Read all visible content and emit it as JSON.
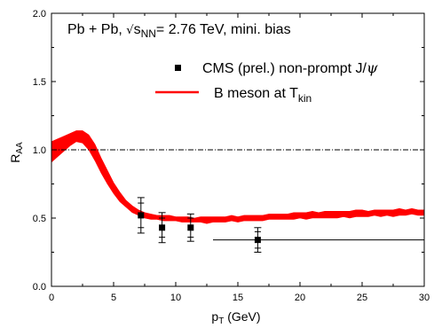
{
  "chart_data": {
    "type": "scatter",
    "title": "",
    "annotation": {
      "pre": "Pb + Pb, ",
      "sqrt": "√",
      "s": "s",
      "sub": "NN",
      "post": "= 2.76 TeV, mini. bias"
    },
    "xlabel": {
      "main": "p",
      "sub": "T",
      "rest": " (GeV)"
    },
    "ylabel": {
      "main": "R",
      "sub": "AA"
    },
    "xlim": [
      0,
      30
    ],
    "ylim": [
      0.0,
      2.0
    ],
    "x_ticks": [
      "0",
      "5",
      "10",
      "15",
      "20",
      "25",
      "30"
    ],
    "y_ticks": [
      "0.0",
      "0.5",
      "1.0",
      "1.5",
      "2.0"
    ],
    "x_tick_values": [
      0,
      5,
      10,
      15,
      20,
      25,
      30
    ],
    "y_tick_values": [
      0.0,
      0.5,
      1.0,
      1.5,
      2.0
    ],
    "grid": false,
    "legend_placement": "top-right",
    "reference_line": {
      "y": 1.0,
      "style": "dash-dot"
    },
    "cms_points": {
      "name": "CMS (prel.) non-prompt J/ψ",
      "name_main": "CMS (prel.) non-prompt J/",
      "name_psi": "ψ",
      "color": "#000000",
      "points": [
        {
          "x": 7.2,
          "y": 0.52,
          "stat": 0.09,
          "syst": 0.13
        },
        {
          "x": 8.9,
          "y": 0.43,
          "stat": 0.07,
          "syst": 0.11
        },
        {
          "x": 11.2,
          "y": 0.43,
          "stat": 0.07,
          "syst": 0.1
        },
        {
          "x": 16.6,
          "y": 0.34,
          "stat": 0.06,
          "syst": 0.09
        }
      ]
    },
    "b_meson_band": {
      "name": "B meson at T",
      "name_main": "B meson at T",
      "name_sub": "kin",
      "color": "#ff0000",
      "x": [
        0,
        0.5,
        1,
        1.5,
        2,
        2.5,
        3,
        3.5,
        4,
        4.5,
        5,
        5.5,
        6,
        6.5,
        7,
        7.5,
        8,
        8.5,
        9,
        9.5,
        10,
        10.5,
        11,
        11.5,
        12,
        12.5,
        13,
        13.5,
        14,
        14.5,
        15,
        15.5,
        16,
        16.5,
        17,
        17.5,
        18,
        18.5,
        19,
        19.5,
        20,
        20.5,
        21,
        21.5,
        22,
        22.5,
        23,
        23.5,
        24,
        24.5,
        25,
        25.5,
        26,
        26.5,
        27,
        27.5,
        28,
        28.5,
        29,
        29.5,
        30
      ],
      "lower": [
        0.91,
        0.95,
        0.99,
        1.03,
        1.06,
        1.05,
        1.0,
        0.92,
        0.83,
        0.75,
        0.68,
        0.62,
        0.58,
        0.54,
        0.52,
        0.5,
        0.49,
        0.49,
        0.48,
        0.48,
        0.48,
        0.47,
        0.47,
        0.47,
        0.47,
        0.46,
        0.47,
        0.47,
        0.47,
        0.48,
        0.47,
        0.48,
        0.48,
        0.48,
        0.48,
        0.49,
        0.49,
        0.49,
        0.49,
        0.49,
        0.5,
        0.49,
        0.5,
        0.5,
        0.5,
        0.5,
        0.5,
        0.51,
        0.5,
        0.51,
        0.51,
        0.51,
        0.52,
        0.51,
        0.52,
        0.51,
        0.52,
        0.52,
        0.53,
        0.52,
        0.52
      ],
      "upper": [
        1.06,
        1.08,
        1.1,
        1.12,
        1.14,
        1.14,
        1.11,
        1.04,
        0.94,
        0.85,
        0.76,
        0.69,
        0.63,
        0.59,
        0.56,
        0.54,
        0.53,
        0.52,
        0.52,
        0.52,
        0.51,
        0.51,
        0.51,
        0.5,
        0.51,
        0.51,
        0.51,
        0.51,
        0.51,
        0.52,
        0.51,
        0.52,
        0.52,
        0.52,
        0.52,
        0.53,
        0.53,
        0.53,
        0.53,
        0.54,
        0.54,
        0.54,
        0.55,
        0.54,
        0.55,
        0.55,
        0.55,
        0.55,
        0.55,
        0.56,
        0.56,
        0.55,
        0.56,
        0.56,
        0.56,
        0.56,
        0.57,
        0.56,
        0.57,
        0.56,
        0.56
      ]
    },
    "bracket_line": {
      "x_start": 13.0,
      "x_end": 30,
      "y": 0.34
    }
  }
}
